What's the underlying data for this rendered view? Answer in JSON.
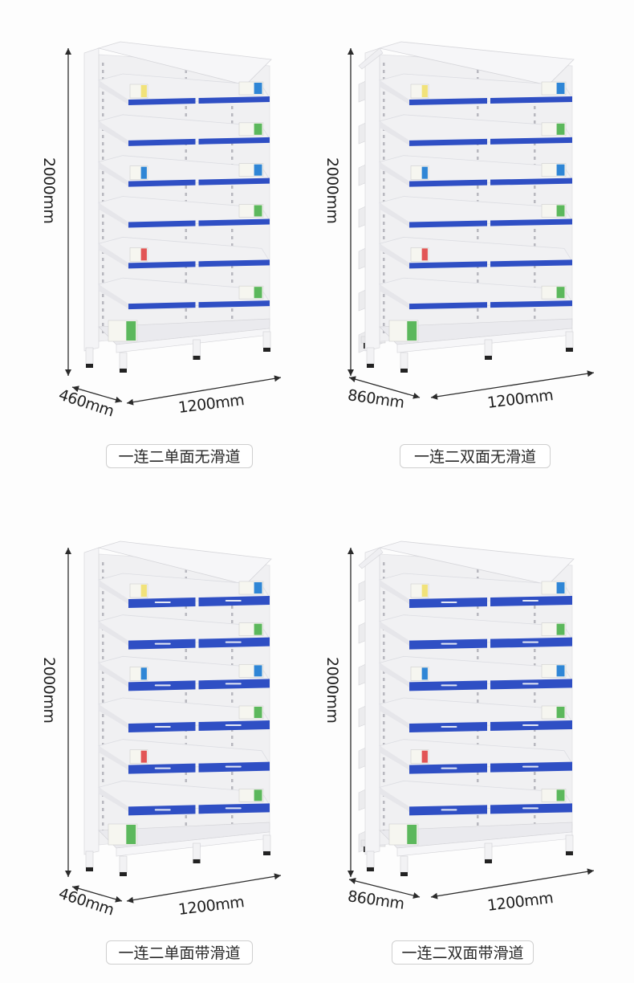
{
  "products": [
    {
      "caption": "一连二单面无滑道",
      "height_label": "2000mm",
      "depth_label": "460mm",
      "width_label": "1200mm",
      "sided": "single",
      "slides": false
    },
    {
      "caption": "一连二双面无滑道",
      "height_label": "2000mm",
      "depth_label": "860mm",
      "width_label": "1200mm",
      "sided": "double",
      "slides": false
    },
    {
      "caption": "一连二单面带滑道",
      "height_label": "2000mm",
      "depth_label": "460mm",
      "width_label": "1200mm",
      "sided": "single",
      "slides": true
    },
    {
      "caption": "一连二双面带滑道",
      "height_label": "2000mm",
      "depth_label": "860mm",
      "width_label": "1200mm",
      "sided": "double",
      "slides": true
    }
  ],
  "colors": {
    "shelf_white": "#f1f1f3",
    "shelf_shadow": "#dcdde2",
    "accent_blue": "#2f4fc4",
    "arrow": "#2b2b2b",
    "box_green": "#5cb85c",
    "box_yellow": "#f1e27a",
    "box_blue": "#2f86d6"
  }
}
